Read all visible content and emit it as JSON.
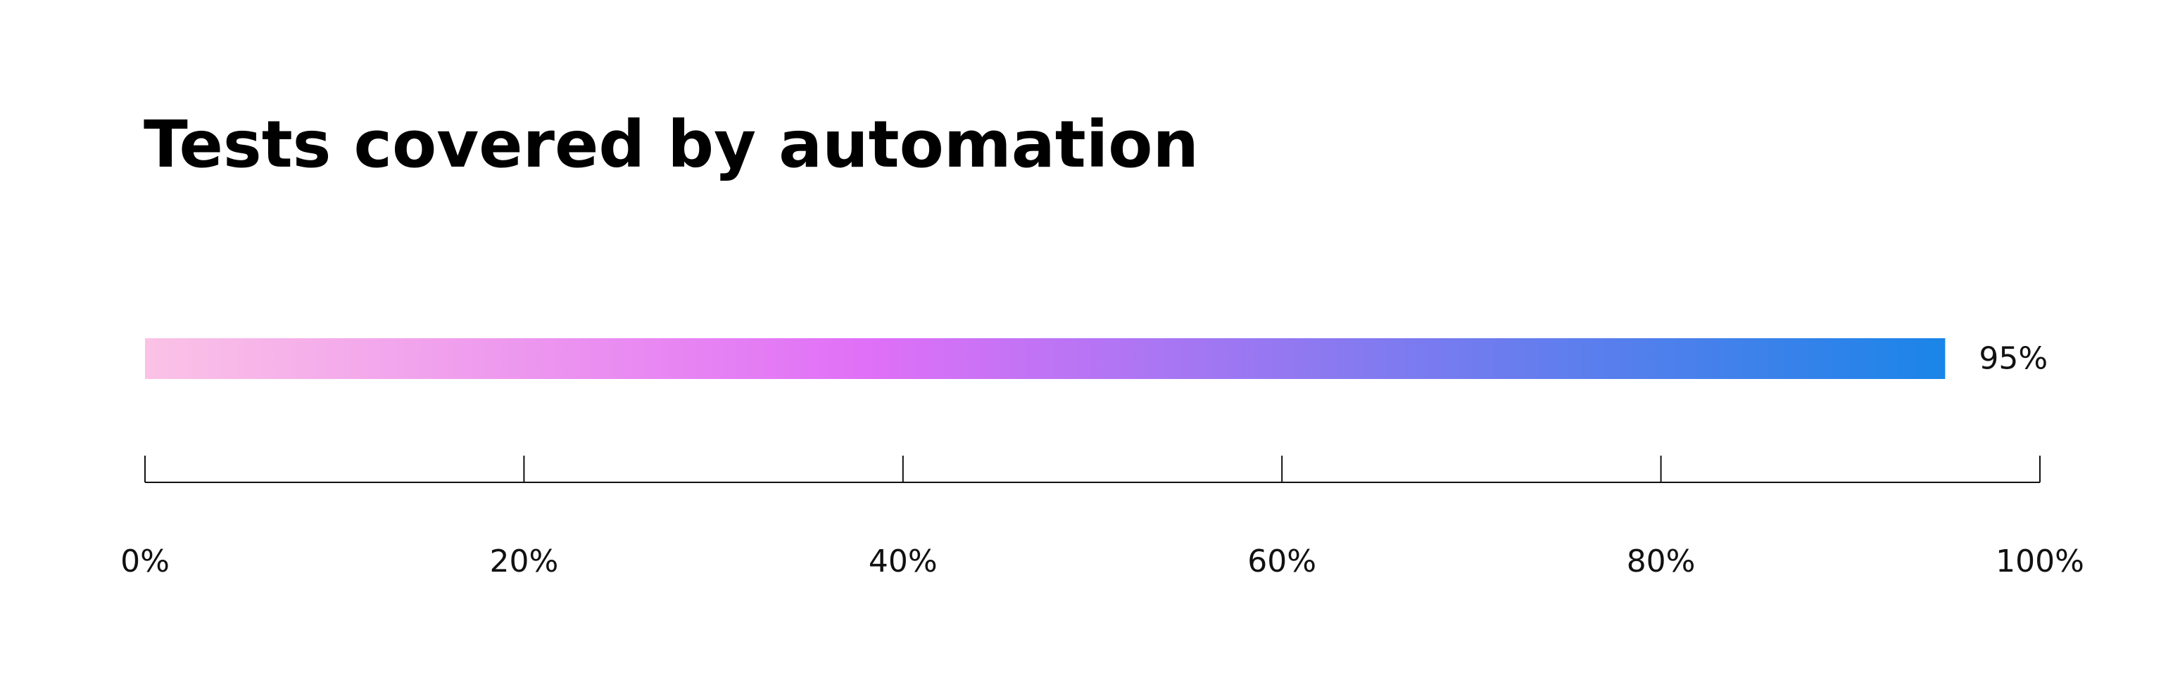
{
  "chart_data": {
    "type": "bar",
    "orientation": "horizontal",
    "title": "Tests covered by automation",
    "categories": [
      ""
    ],
    "values": [
      95
    ],
    "data_labels": [
      "95%"
    ],
    "xlim": [
      0,
      100
    ],
    "x_ticks": [
      0,
      20,
      40,
      60,
      80,
      100
    ],
    "x_tick_labels": [
      "0%",
      "20%",
      "40%",
      "60%",
      "80%",
      "100%"
    ],
    "grid": false,
    "legend": "none",
    "bar_gradient": [
      "#fbc2e6",
      "#e070f7",
      "#1a85e8"
    ]
  }
}
